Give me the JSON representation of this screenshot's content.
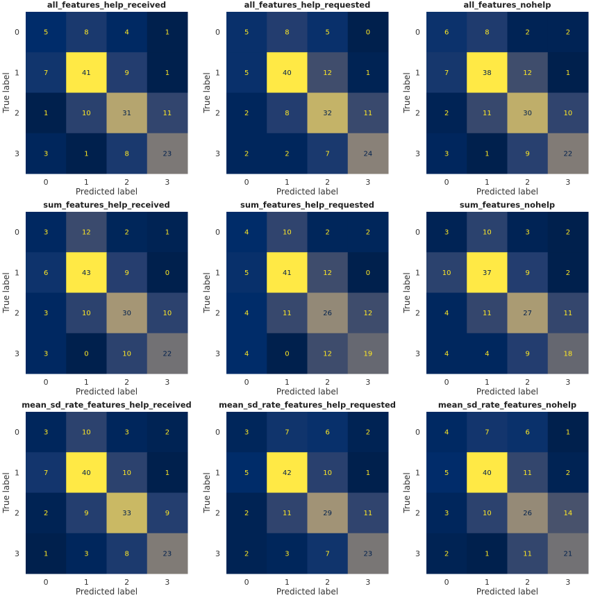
{
  "chart_data": [
    {
      "type": "heatmap",
      "title": "all_features_help_received",
      "xlabel": "Predicted label",
      "ylabel": "True label",
      "x_ticks": [
        "0",
        "1",
        "2",
        "3"
      ],
      "y_ticks": [
        "0",
        "1",
        "2",
        "3"
      ],
      "grid": false,
      "matrix": [
        [
          5,
          8,
          4,
          1
        ],
        [
          7,
          41,
          9,
          1
        ],
        [
          1,
          10,
          31,
          11
        ],
        [
          3,
          1,
          8,
          23
        ]
      ]
    },
    {
      "type": "heatmap",
      "title": "all_features_help_requested",
      "xlabel": "Predicted label",
      "ylabel": "True label",
      "x_ticks": [
        "0",
        "1",
        "2",
        "3"
      ],
      "y_ticks": [
        "0",
        "1",
        "2",
        "3"
      ],
      "grid": false,
      "matrix": [
        [
          5,
          8,
          5,
          0
        ],
        [
          5,
          40,
          12,
          1
        ],
        [
          2,
          8,
          32,
          11
        ],
        [
          2,
          2,
          7,
          24
        ]
      ]
    },
    {
      "type": "heatmap",
      "title": "all_features_nohelp",
      "xlabel": "Predicted label",
      "ylabel": "True label",
      "x_ticks": [
        "0",
        "1",
        "2",
        "3"
      ],
      "y_ticks": [
        "0",
        "1",
        "2",
        "3"
      ],
      "grid": false,
      "matrix": [
        [
          6,
          8,
          2,
          2
        ],
        [
          7,
          38,
          12,
          1
        ],
        [
          2,
          11,
          30,
          10
        ],
        [
          3,
          1,
          9,
          22
        ]
      ]
    },
    {
      "type": "heatmap",
      "title": "sum_features_help_received",
      "xlabel": "Predicted label",
      "ylabel": "True label",
      "x_ticks": [
        "0",
        "1",
        "2",
        "3"
      ],
      "y_ticks": [
        "0",
        "1",
        "2",
        "3"
      ],
      "grid": false,
      "matrix": [
        [
          3,
          12,
          2,
          1
        ],
        [
          6,
          43,
          9,
          0
        ],
        [
          3,
          10,
          30,
          10
        ],
        [
          3,
          0,
          10,
          22
        ]
      ]
    },
    {
      "type": "heatmap",
      "title": "sum_features_help_requested",
      "xlabel": "Predicted label",
      "ylabel": "True label",
      "x_ticks": [
        "0",
        "1",
        "2",
        "3"
      ],
      "y_ticks": [
        "0",
        "1",
        "2",
        "3"
      ],
      "grid": false,
      "matrix": [
        [
          4,
          10,
          2,
          2
        ],
        [
          5,
          41,
          12,
          0
        ],
        [
          4,
          11,
          26,
          12
        ],
        [
          4,
          0,
          12,
          19
        ]
      ]
    },
    {
      "type": "heatmap",
      "title": "sum_features_nohelp",
      "xlabel": "Predicted label",
      "ylabel": "True label",
      "x_ticks": [
        "0",
        "1",
        "2",
        "3"
      ],
      "y_ticks": [
        "0",
        "1",
        "2",
        "3"
      ],
      "grid": false,
      "matrix": [
        [
          3,
          10,
          3,
          2
        ],
        [
          10,
          37,
          9,
          2
        ],
        [
          4,
          11,
          27,
          11
        ],
        [
          4,
          4,
          9,
          18
        ]
      ]
    },
    {
      "type": "heatmap",
      "title": "mean_sd_rate_features_help_received",
      "xlabel": "Predicted label",
      "ylabel": "True label",
      "x_ticks": [
        "0",
        "1",
        "2",
        "3"
      ],
      "y_ticks": [
        "0",
        "1",
        "2",
        "3"
      ],
      "grid": false,
      "matrix": [
        [
          3,
          10,
          3,
          2
        ],
        [
          7,
          40,
          10,
          1
        ],
        [
          2,
          9,
          33,
          9
        ],
        [
          1,
          3,
          8,
          23
        ]
      ]
    },
    {
      "type": "heatmap",
      "title": "mean_sd_rate_features_help_requested",
      "xlabel": "Predicted label",
      "ylabel": "True label",
      "x_ticks": [
        "0",
        "1",
        "2",
        "3"
      ],
      "y_ticks": [
        "0",
        "1",
        "2",
        "3"
      ],
      "grid": false,
      "matrix": [
        [
          3,
          7,
          6,
          2
        ],
        [
          5,
          42,
          10,
          1
        ],
        [
          2,
          11,
          29,
          11
        ],
        [
          2,
          3,
          7,
          23
        ]
      ]
    },
    {
      "type": "heatmap",
      "title": "mean_sd_rate_features_nohelp",
      "xlabel": "Predicted label",
      "ylabel": "True label",
      "x_ticks": [
        "0",
        "1",
        "2",
        "3"
      ],
      "y_ticks": [
        "0",
        "1",
        "2",
        "3"
      ],
      "grid": false,
      "matrix": [
        [
          4,
          7,
          6,
          1
        ],
        [
          5,
          40,
          11,
          2
        ],
        [
          3,
          10,
          26,
          14
        ],
        [
          2,
          1,
          11,
          21
        ]
      ]
    }
  ],
  "colormap": "cividis",
  "colors": {
    "low": "#00204d",
    "high": "#ffe945",
    "text_on_dark": "#fde725",
    "text_on_light": "#00204d"
  }
}
